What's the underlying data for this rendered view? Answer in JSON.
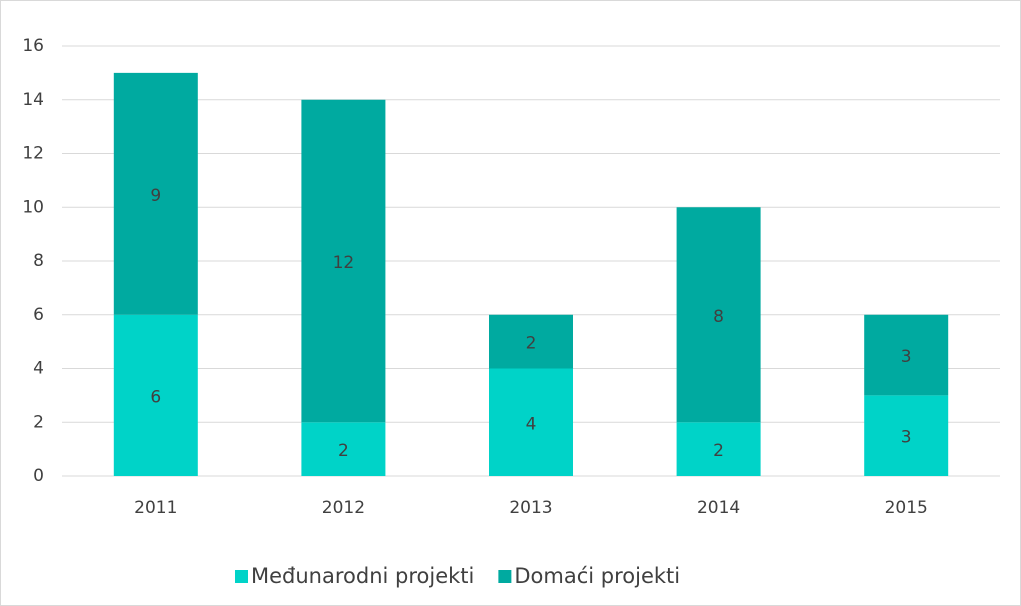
{
  "chart_data": {
    "type": "bar",
    "stacked": true,
    "categories": [
      "2011",
      "2012",
      "2013",
      "2014",
      "2015"
    ],
    "series": [
      {
        "name": "Međunarodni projekti",
        "color": "#00d3c8",
        "values": [
          6,
          2,
          4,
          2,
          3
        ]
      },
      {
        "name": "Domaći projekti",
        "color": "#00aaa0",
        "values": [
          9,
          12,
          2,
          8,
          3
        ]
      }
    ],
    "ylim": [
      0,
      16
    ],
    "yticks": [
      0,
      2,
      4,
      6,
      8,
      10,
      12,
      14,
      16
    ],
    "grid": true,
    "legend": "bottom"
  }
}
